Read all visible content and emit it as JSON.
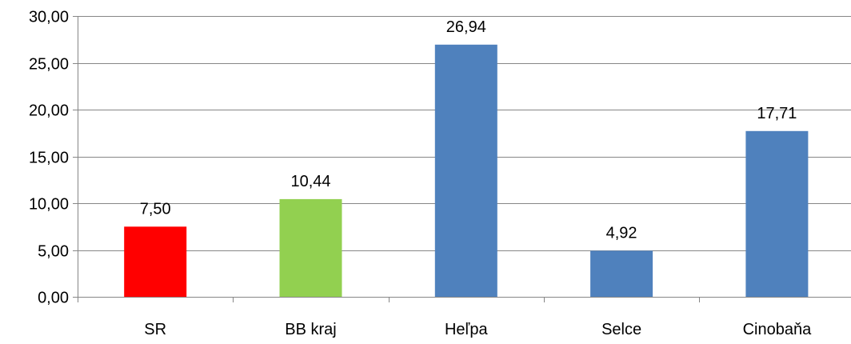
{
  "chart_data": {
    "type": "bar",
    "title": "",
    "xlabel": "",
    "ylabel": "",
    "categories": [
      "SR",
      "BB kraj",
      "Heľpa",
      "Selce",
      "Cinobaňa"
    ],
    "values": [
      7.5,
      10.44,
      26.94,
      4.92,
      17.71
    ],
    "value_labels": [
      "7,50",
      "10,44",
      "26,94",
      "4,92",
      "17,71"
    ],
    "bar_colors": [
      "#ff0000",
      "#92d050",
      "#4f81bd",
      "#4f81bd",
      "#4f81bd"
    ],
    "ylim": [
      0,
      30
    ],
    "yticks": [
      0,
      5,
      10,
      15,
      20,
      25,
      30
    ],
    "ytick_labels": [
      "0,00",
      "5,00",
      "10,00",
      "15,00",
      "20,00",
      "25,00",
      "30,00"
    ],
    "grid": true,
    "gridline_color": "#868686",
    "legend": "none"
  }
}
